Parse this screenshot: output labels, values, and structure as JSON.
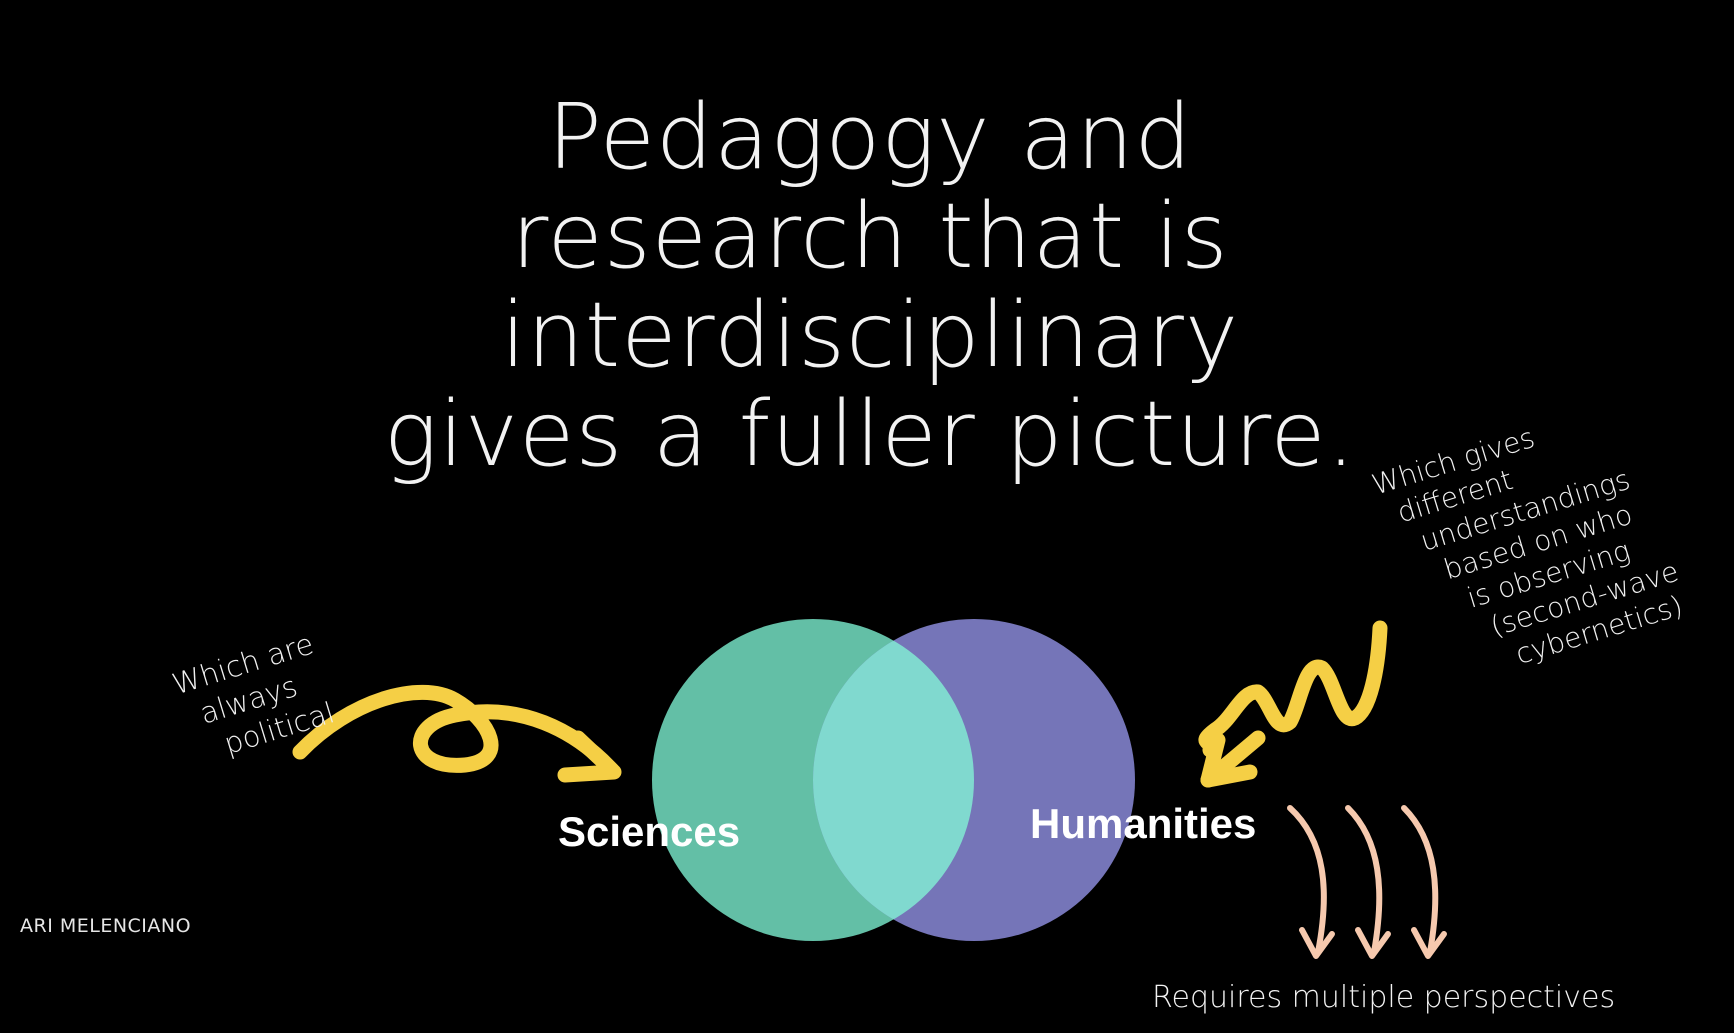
{
  "title_lines": [
    "Pedagogy and",
    "research that is",
    "interdisciplinary",
    "gives a fuller picture."
  ],
  "venn": {
    "left_label": "Sciences",
    "right_label": "Humanities",
    "left_color": "#63bfa6",
    "right_color": "#7575b8",
    "overlap_color": "#80d9cf"
  },
  "notes": {
    "left": [
      "Which are",
      "always",
      "political"
    ],
    "right": [
      "Which gives",
      "different",
      "understandings",
      "based on who",
      "is observing",
      "(second-wave",
      "cybernetics)"
    ]
  },
  "bottom_text": "Requires multiple perspectives",
  "author": "ARI MELENCIANO",
  "colors": {
    "background": "#000000",
    "yellow_arrow": "#f5cf45",
    "peach_arrow": "#f6c9ae"
  }
}
